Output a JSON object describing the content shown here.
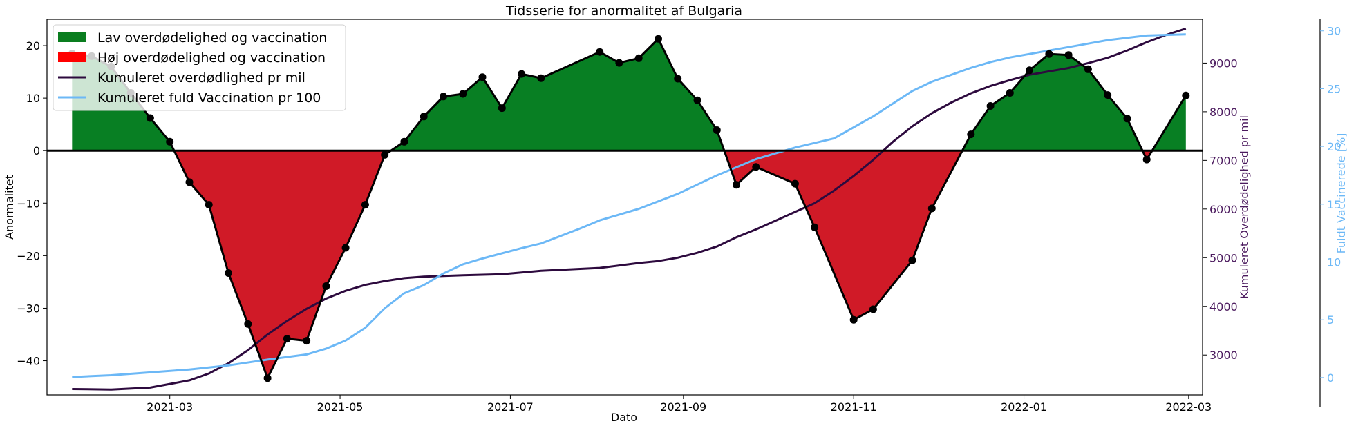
{
  "chart_data": {
    "type": "line",
    "title": "Tidsserie for anormalitet af Bulgaria",
    "xlabel": "Dato",
    "ylabel": "Anormalitet",
    "ylabel_right": "Kumuleret Overdødelighed pr mil",
    "ylabel_right2": "Fuldt Vaccinerede [%]",
    "ylim": [
      -46.5,
      25
    ],
    "ylim_right": [
      2180,
      9900
    ],
    "ylim_right2": [
      -1.5,
      31
    ],
    "x_ticks": [
      "2021-03",
      "2021-05",
      "2021-07",
      "2021-09",
      "2021-11",
      "2022-01",
      "2022-03"
    ],
    "y_ticks": [
      20,
      10,
      0,
      -10,
      -20,
      -30,
      -40
    ],
    "y_right_ticks": [
      9000,
      8000,
      7000,
      6000,
      5000,
      4000,
      3000
    ],
    "y_right2_ticks": [
      30,
      25,
      20,
      15,
      10,
      5,
      0
    ],
    "colors": {
      "positive_fill": "#087f23",
      "negative_fill": "#d01a27",
      "anomaly_line": "#000000",
      "excess_mortality_line": "#2d0a3e",
      "vaccination_line": "#6cb8f6",
      "right_axis_text": "#4b1a5e",
      "right2_axis_text": "#6cb8f6",
      "zero_line": "#000000"
    },
    "legend": {
      "placement": "upper-left",
      "entries": [
        {
          "label": "Lav overdødelighed og vaccination",
          "swatch": "patch",
          "color": "#0a7d1f"
        },
        {
          "label": "Høj overdødelighed og vaccination",
          "swatch": "patch",
          "color": "#ff0000"
        },
        {
          "label": "Kumuleret overdødlighed pr mil",
          "swatch": "line",
          "color": "#2d0a3e"
        },
        {
          "label": "Kumuleret fuld Vaccination pr 100",
          "swatch": "line",
          "color": "#6cb8f6"
        }
      ]
    },
    "anomaly": {
      "dates": [
        "2021-01-25",
        "2021-02-01",
        "2021-02-08",
        "2021-02-15",
        "2021-02-22",
        "2021-03-01",
        "2021-03-08",
        "2021-03-15",
        "2021-03-22",
        "2021-03-29",
        "2021-04-05",
        "2021-04-12",
        "2021-04-19",
        "2021-04-26",
        "2021-05-03",
        "2021-05-10",
        "2021-05-17",
        "2021-05-24",
        "2021-05-31",
        "2021-06-07",
        "2021-06-14",
        "2021-06-21",
        "2021-06-28",
        "2021-07-05",
        "2021-07-12",
        "2021-08-02",
        "2021-08-09",
        "2021-08-16",
        "2021-08-23",
        "2021-08-30",
        "2021-09-06",
        "2021-09-13",
        "2021-09-20",
        "2021-09-27",
        "2021-10-11",
        "2021-10-18",
        "2021-11-01",
        "2021-11-08",
        "2021-11-22",
        "2021-11-29",
        "2021-12-13",
        "2021-12-20",
        "2021-12-27",
        "2022-01-03",
        "2022-01-10",
        "2022-01-17",
        "2022-01-24",
        "2022-01-31",
        "2022-02-07",
        "2022-02-14",
        "2022-02-28"
      ],
      "values": [
        18.5,
        18.0,
        16.0,
        11.0,
        6.2,
        1.7,
        -6.0,
        -10.3,
        -23.3,
        -33.0,
        -43.3,
        -35.8,
        -36.2,
        -25.8,
        -18.5,
        -10.3,
        -0.8,
        1.7,
        6.5,
        10.3,
        10.8,
        14.0,
        8.1,
        14.6,
        13.8,
        18.8,
        16.7,
        17.6,
        21.3,
        13.7,
        9.6,
        3.9,
        -6.5,
        -3.1,
        -6.3,
        -14.6,
        -32.2,
        -30.2,
        -20.9,
        -11.0,
        3.1,
        8.5,
        11.0,
        15.3,
        18.4,
        18.2,
        15.5,
        10.6,
        6.1,
        -1.7,
        10.5
      ]
    },
    "excess_mortality_per_million": {
      "dates": [
        "2021-01-25",
        "2021-02-08",
        "2021-02-22",
        "2021-03-08",
        "2021-03-15",
        "2021-03-22",
        "2021-03-29",
        "2021-04-05",
        "2021-04-12",
        "2021-04-19",
        "2021-04-26",
        "2021-05-03",
        "2021-05-10",
        "2021-05-17",
        "2021-05-24",
        "2021-05-31",
        "2021-06-14",
        "2021-06-28",
        "2021-07-12",
        "2021-08-02",
        "2021-08-09",
        "2021-08-16",
        "2021-08-23",
        "2021-08-30",
        "2021-09-06",
        "2021-09-13",
        "2021-09-20",
        "2021-09-27",
        "2021-10-04",
        "2021-10-11",
        "2021-10-18",
        "2021-10-25",
        "2021-11-01",
        "2021-11-08",
        "2021-11-15",
        "2021-11-22",
        "2021-11-29",
        "2021-12-06",
        "2021-12-13",
        "2021-12-20",
        "2021-12-27",
        "2022-01-03",
        "2022-01-10",
        "2022-01-17",
        "2022-01-24",
        "2022-01-31",
        "2022-02-07",
        "2022-02-14",
        "2022-02-21",
        "2022-02-28"
      ],
      "values": [
        2300,
        2290,
        2330,
        2480,
        2620,
        2830,
        3100,
        3420,
        3700,
        3950,
        4160,
        4320,
        4440,
        4520,
        4580,
        4610,
        4640,
        4660,
        4730,
        4790,
        4840,
        4890,
        4930,
        5000,
        5100,
        5230,
        5420,
        5580,
        5760,
        5940,
        6120,
        6380,
        6680,
        7010,
        7380,
        7700,
        7970,
        8190,
        8380,
        8530,
        8650,
        8760,
        8830,
        8900,
        9000,
        9110,
        9260,
        9430,
        9580,
        9710
      ]
    },
    "full_vaccination_per_100": {
      "dates": [
        "2021-01-25",
        "2021-02-08",
        "2021-02-22",
        "2021-03-08",
        "2021-03-22",
        "2021-04-05",
        "2021-04-19",
        "2021-04-26",
        "2021-05-03",
        "2021-05-10",
        "2021-05-17",
        "2021-05-24",
        "2021-05-31",
        "2021-06-07",
        "2021-06-14",
        "2021-06-21",
        "2021-07-05",
        "2021-07-12",
        "2021-07-26",
        "2021-08-02",
        "2021-08-16",
        "2021-08-30",
        "2021-09-13",
        "2021-09-27",
        "2021-10-11",
        "2021-10-25",
        "2021-11-08",
        "2021-11-22",
        "2021-11-29",
        "2021-12-06",
        "2021-12-13",
        "2021-12-20",
        "2021-12-27",
        "2022-01-03",
        "2022-01-10",
        "2022-01-17",
        "2022-01-24",
        "2022-01-31",
        "2022-02-07",
        "2022-02-14",
        "2022-02-28"
      ],
      "values": [
        0.05,
        0.2,
        0.45,
        0.7,
        1.05,
        1.55,
        2.0,
        2.5,
        3.2,
        4.3,
        6.0,
        7.3,
        8.0,
        9.0,
        9.8,
        10.3,
        11.2,
        11.6,
        12.9,
        13.6,
        14.6,
        15.9,
        17.5,
        18.9,
        19.9,
        20.7,
        22.6,
        24.8,
        25.6,
        26.2,
        26.8,
        27.3,
        27.7,
        28.0,
        28.3,
        28.6,
        28.9,
        29.2,
        29.4,
        29.6,
        29.7
      ]
    }
  }
}
